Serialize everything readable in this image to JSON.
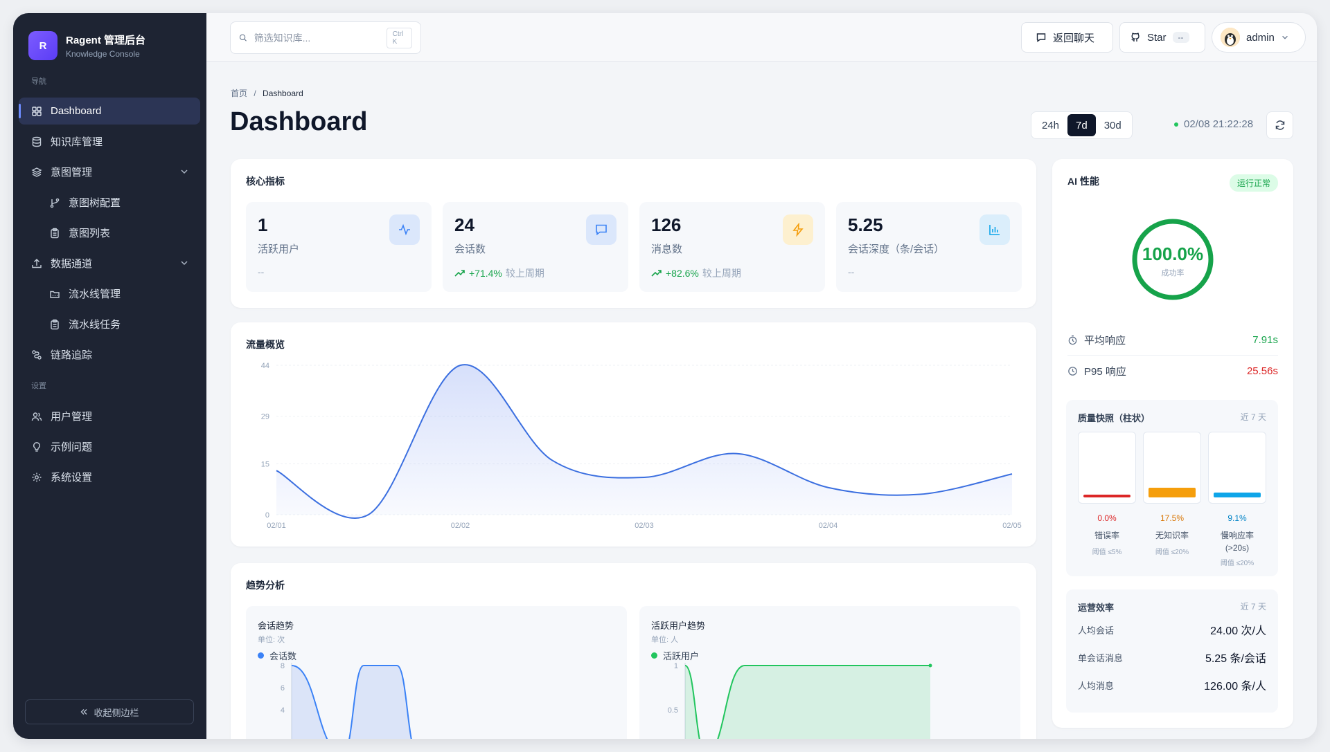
{
  "brand": {
    "logo": "R",
    "title": "Ragent 管理后台",
    "subtitle": "Knowledge Console"
  },
  "sidebar": {
    "nav_label": "导航",
    "settings_label": "设置",
    "items": [
      {
        "label": "Dashboard",
        "icon": "grid-icon",
        "active": true
      },
      {
        "label": "知识库管理",
        "icon": "database-icon"
      },
      {
        "label": "意图管理",
        "icon": "layers-icon",
        "expandable": true
      },
      {
        "label": "意图树配置",
        "icon": "branch-icon",
        "sub": true
      },
      {
        "label": "意图列表",
        "icon": "clipboard-icon",
        "sub": true
      },
      {
        "label": "数据通道",
        "icon": "upload-icon",
        "expandable": true
      },
      {
        "label": "流水线管理",
        "icon": "folder-icon",
        "sub": true
      },
      {
        "label": "流水线任务",
        "icon": "clipboard-icon",
        "sub": true
      },
      {
        "label": "链路追踪",
        "icon": "trace-icon"
      }
    ],
    "settings_items": [
      {
        "label": "用户管理",
        "icon": "users-icon"
      },
      {
        "label": "示例问题",
        "icon": "lightbulb-icon"
      },
      {
        "label": "系统设置",
        "icon": "gear-icon"
      }
    ],
    "collapse_label": "收起侧边栏"
  },
  "topbar": {
    "search_placeholder": "筛选知识库...",
    "search_shortcut": "Ctrl K",
    "back_chat": "返回聊天",
    "star_label": "Star",
    "star_count": "--",
    "user": "admin"
  },
  "breadcrumb": {
    "home": "首页",
    "sep": "/",
    "current": "Dashboard"
  },
  "page_title": "Dashboard",
  "ranges": [
    "24h",
    "7d",
    "30d"
  ],
  "active_range": "7d",
  "updated_at": "02/08 21:22:28",
  "core": {
    "title": "核心指标",
    "metrics": [
      {
        "value": "1",
        "label": "活跃用户",
        "foot": "--",
        "trend": "",
        "icon": "activity-icon",
        "color": "#3b82f6"
      },
      {
        "value": "24",
        "label": "会话数",
        "foot": "较上周期",
        "trend": "+71.4%",
        "icon": "message-icon",
        "color": "#3b82f6"
      },
      {
        "value": "126",
        "label": "消息数",
        "foot": "较上周期",
        "trend": "+82.6%",
        "icon": "bolt-icon",
        "color": "#f59e0b"
      },
      {
        "value": "5.25",
        "label": "会话深度（条/会话）",
        "foot": "--",
        "trend": "",
        "icon": "bar-chart-icon",
        "color": "#0ea5e9"
      }
    ]
  },
  "traffic": {
    "title": "流量概览",
    "chart_data": {
      "type": "area",
      "x": [
        "02/01",
        "02/01.5",
        "02/02",
        "02/02.5",
        "02/03",
        "02/03.5",
        "02/04",
        "02/04.5",
        "02/05"
      ],
      "x_ticks": [
        "02/01",
        "02/02",
        "02/03",
        "02/04",
        "02/05"
      ],
      "values": [
        13,
        0,
        44,
        16,
        11,
        18,
        8,
        6,
        12
      ],
      "y_ticks": [
        0,
        15,
        29,
        44
      ],
      "ylim": [
        0,
        44
      ],
      "color": "#3b6fe0"
    }
  },
  "trend": {
    "title": "趋势分析",
    "sessions": {
      "title": "会话趋势",
      "unit": "单位: 次",
      "legend": "会话数",
      "color": "#3b82f6",
      "chart_data": {
        "type": "area",
        "y_ticks": [
          4,
          6,
          8
        ],
        "values": [
          8,
          0,
          8,
          8,
          0
        ]
      }
    },
    "active_users": {
      "title": "活跃用户趋势",
      "unit": "单位: 人",
      "legend": "活跃用户",
      "color": "#22c55e",
      "chart_data": {
        "type": "area",
        "y_ticks": [
          0.5,
          1
        ],
        "values": [
          1,
          0,
          1,
          1,
          1
        ]
      }
    }
  },
  "ai": {
    "title": "AI 性能",
    "status": "运行正常",
    "success_rate": "100.0%",
    "success_label": "成功率",
    "success_fraction": 1.0,
    "avg_label": "平均响应",
    "avg_value": "7.91s",
    "p95_label": "P95 响应",
    "p95_value": "25.56s",
    "quality": {
      "title": "质量快照（柱状）",
      "note": "近 7 天",
      "items": [
        {
          "pct": "0.0%",
          "name": "错误率",
          "threshold": "阈值 ≤5%",
          "color": "#dc2626",
          "level": 0.0
        },
        {
          "pct": "17.5%",
          "name": "无知识率",
          "threshold": "阈值 ≤20%",
          "color": "#f59e0b",
          "level": 0.175
        },
        {
          "pct": "9.1%",
          "name": "慢响应率",
          "name2": "(>20s)",
          "threshold": "阈值 ≤20%",
          "color": "#0ea5e9",
          "level": 0.091
        }
      ]
    },
    "efficiency": {
      "title": "运营效率",
      "note": "近 7 天",
      "rows": [
        {
          "label": "人均会话",
          "value": "24.00 次/人"
        },
        {
          "label": "单会话消息",
          "value": "5.25 条/会话"
        },
        {
          "label": "人均消息",
          "value": "126.00 条/人"
        }
      ]
    }
  }
}
